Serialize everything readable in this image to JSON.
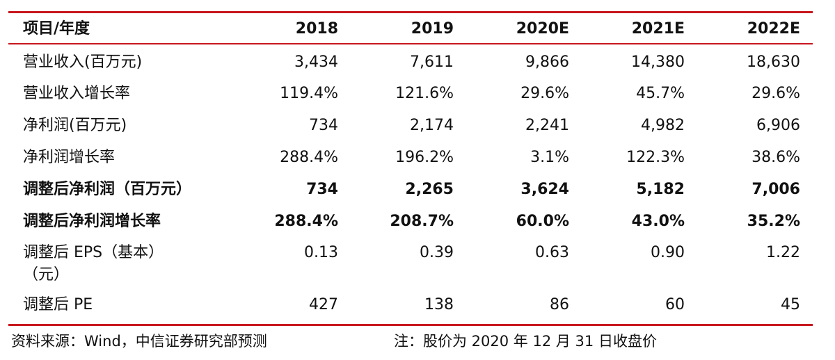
{
  "header": {
    "label": "项目/年度",
    "years": [
      "2018",
      "2019",
      "2020E",
      "2021E",
      "2022E"
    ]
  },
  "rows": [
    {
      "label": "营业收入(百万元)",
      "values": [
        "3,434",
        "7,611",
        "9,866",
        "14,380",
        "18,630"
      ],
      "bold": false
    },
    {
      "label": "营业收入增长率",
      "values": [
        "119.4%",
        "121.6%",
        "29.6%",
        "45.7%",
        "29.6%"
      ],
      "bold": false
    },
    {
      "label": "净利润(百万元)",
      "values": [
        "734",
        "2,174",
        "2,241",
        "4,982",
        "6,906"
      ],
      "bold": false
    },
    {
      "label": "净利润增长率",
      "values": [
        "288.4%",
        "196.2%",
        "3.1%",
        "122.3%",
        "38.6%"
      ],
      "bold": false
    },
    {
      "label": "调整后净利润（百万元）",
      "values": [
        "734",
        "2,265",
        "3,624",
        "5,182",
        "7,006"
      ],
      "bold": true
    },
    {
      "label": "调整后净利润增长率",
      "values": [
        "288.4%",
        "208.7%",
        "60.0%",
        "43.0%",
        "35.2%"
      ],
      "bold": true
    },
    {
      "label_line1": "调整后 EPS（基本）",
      "label_line2": "（元）",
      "values": [
        "0.13",
        "0.39",
        "0.63",
        "0.90",
        "1.22"
      ],
      "bold": false
    },
    {
      "label": "调整后 PE",
      "values": [
        "427",
        "138",
        "86",
        "60",
        "45"
      ],
      "bold": false
    }
  ],
  "footer": {
    "source": "资料来源：Wind，中信证券研究部预测",
    "note": "注：股价为 2020 年 12 月 31 日收盘价"
  },
  "colors": {
    "rule": "#c8161d",
    "text": "#111111"
  }
}
